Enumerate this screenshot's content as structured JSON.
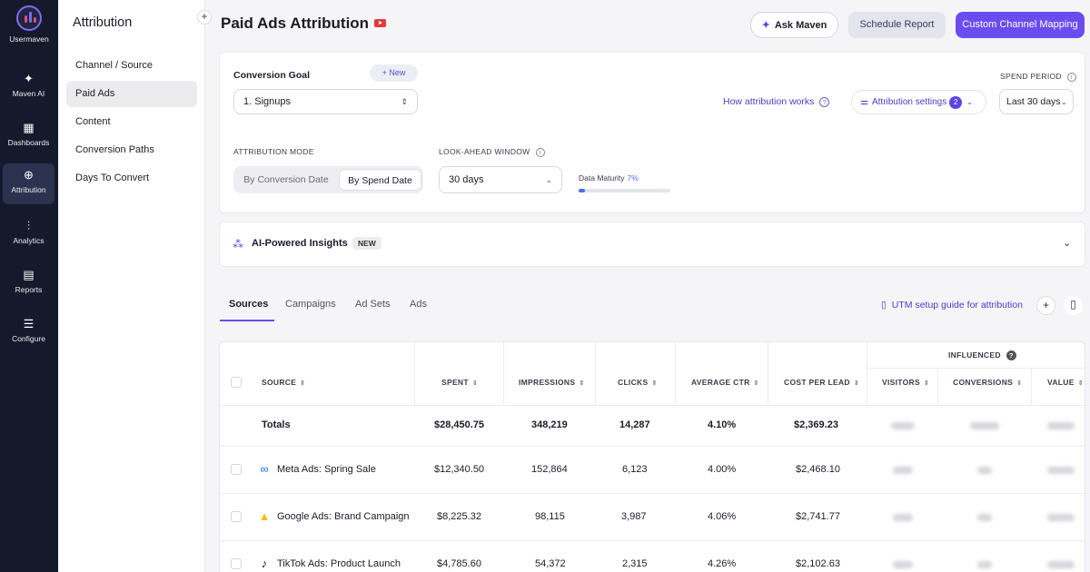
{
  "rail": {
    "logo_label": "Usermaven",
    "items": [
      {
        "label": "Maven AI",
        "icon": "sparkle-icon"
      },
      {
        "label": "Dashboards",
        "icon": "grid-icon"
      },
      {
        "label": "Attribution",
        "icon": "attribution-icon"
      },
      {
        "label": "Analytics",
        "icon": "bar-chart-icon"
      },
      {
        "label": "Reports",
        "icon": "document-icon"
      },
      {
        "label": "Configure",
        "icon": "sliders-icon"
      }
    ]
  },
  "subnav": {
    "title": "Attribution",
    "items": [
      "Channel / Source",
      "Paid Ads",
      "Content",
      "Conversion Paths",
      "Days To Convert"
    ]
  },
  "header": {
    "title": "Paid Ads Attribution",
    "ask_maven": "Ask Maven",
    "schedule": "Schedule Report",
    "custom_mapping": "Custom Channel Mapping"
  },
  "filters": {
    "conversion_goal_label": "Conversion Goal",
    "new_label": "+ New",
    "goal_value": "1. Signups",
    "how_link": "How attribution works",
    "settings_label": "Attribution settings",
    "settings_count": "2",
    "spend_period_label": "SPEND PERIOD",
    "spend_period_value": "Last 30 days",
    "mode_label": "ATTRIBUTION MODE",
    "mode_options": [
      "By Conversion Date",
      "By Spend Date"
    ],
    "lookahead_label": "LOOK-AHEAD WINDOW",
    "lookahead_value": "30 days",
    "maturity_label": "Data Maturity",
    "maturity_value": "7%",
    "maturity_fraction": 0.07
  },
  "insights": {
    "title": "AI-Powered Insights",
    "badge": "NEW"
  },
  "tabs": [
    "Sources",
    "Campaigns",
    "Ad Sets",
    "Ads"
  ],
  "utm_link": "UTM setup guide for attribution",
  "table": {
    "group_label": "INFLUENCED",
    "headers": [
      "SOURCE",
      "SPENT",
      "IMPRESSIONS",
      "CLICKS",
      "AVERAGE CTR",
      "COST PER LEAD",
      "VISITORS",
      "CONVERSIONS",
      "VALUE"
    ],
    "totals": {
      "label": "Totals",
      "spent": "$28,450.75",
      "impressions": "348,219",
      "clicks": "14,287",
      "ctr": "4.10%",
      "cpl": "$2,369.23"
    },
    "rows": [
      {
        "source": "Meta Ads: Spring Sale",
        "icon": "meta-icon",
        "spent": "$12,340.50",
        "impressions": "152,864",
        "clicks": "6,123",
        "ctr": "4.00%",
        "cpl": "$2,468.10"
      },
      {
        "source": "Google Ads: Brand Campaign",
        "icon": "google-ads-icon",
        "spent": "$8,225.32",
        "impressions": "98,115",
        "clicks": "3,987",
        "ctr": "4.06%",
        "cpl": "$2,741.77"
      },
      {
        "source": "TikTok Ads: Product Launch",
        "icon": "tiktok-icon",
        "spent": "$4,785.60",
        "impressions": "54,372",
        "clicks": "2,315",
        "ctr": "4.26%",
        "cpl": "$2,102.63"
      }
    ]
  },
  "colors": {
    "accent": "#6a4df0",
    "rail": "#141a2b",
    "link": "#4b3cc4"
  }
}
